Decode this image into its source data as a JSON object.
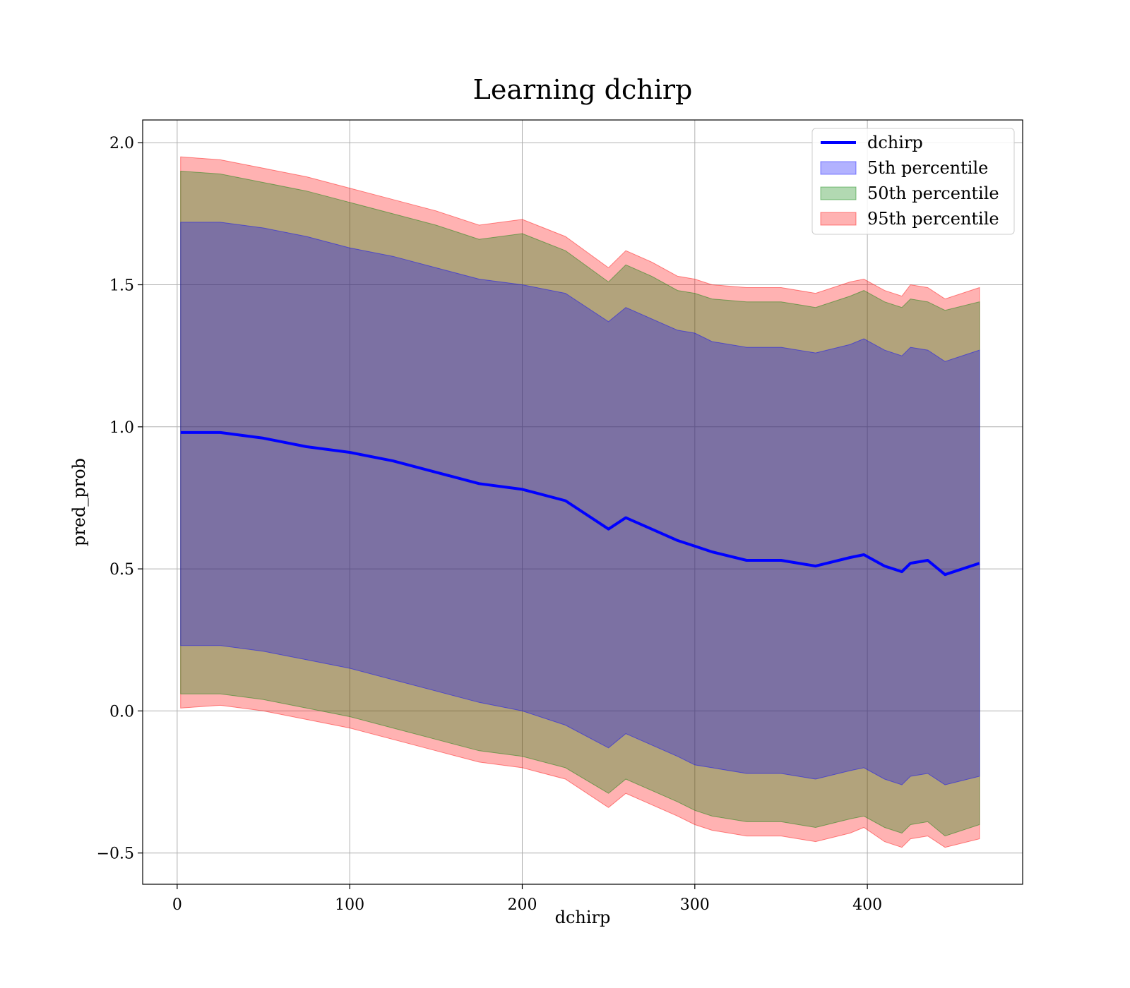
{
  "chart_data": {
    "type": "area",
    "title": "Learning dchirp",
    "xlabel": "dchirp",
    "ylabel": "pred_prob",
    "xlim": [
      -20,
      490
    ],
    "ylim": [
      -0.61,
      2.08
    ],
    "xticks": [
      0,
      100,
      200,
      300,
      400
    ],
    "yticks": [
      -0.5,
      0.0,
      0.5,
      1.0,
      1.5,
      2.0
    ],
    "xtick_labels": [
      "0",
      "100",
      "200",
      "300",
      "400"
    ],
    "ytick_labels": [
      "−0.5",
      "0.0",
      "0.5",
      "1.0",
      "1.5",
      "2.0"
    ],
    "grid": true,
    "legend_position": "top-right",
    "x": [
      2,
      25,
      50,
      75,
      100,
      125,
      150,
      175,
      200,
      225,
      250,
      260,
      275,
      290,
      300,
      310,
      330,
      350,
      370,
      390,
      398,
      410,
      420,
      425,
      435,
      445,
      465
    ],
    "line": {
      "name": "dchirp",
      "color": "#0000ff",
      "values": [
        0.98,
        0.98,
        0.96,
        0.93,
        0.91,
        0.88,
        0.84,
        0.8,
        0.78,
        0.74,
        0.64,
        0.68,
        0.64,
        0.6,
        0.58,
        0.56,
        0.53,
        0.53,
        0.51,
        0.54,
        0.55,
        0.51,
        0.49,
        0.52,
        0.53,
        0.48,
        0.52
      ]
    },
    "bands": [
      {
        "name": "95th percentile",
        "color": "#ff0000",
        "opacity": 0.3,
        "upper": [
          1.95,
          1.94,
          1.91,
          1.88,
          1.84,
          1.8,
          1.76,
          1.71,
          1.73,
          1.67,
          1.56,
          1.62,
          1.58,
          1.53,
          1.52,
          1.5,
          1.49,
          1.49,
          1.47,
          1.51,
          1.52,
          1.48,
          1.46,
          1.5,
          1.49,
          1.45,
          1.49
        ],
        "lower": [
          0.01,
          0.02,
          0.0,
          -0.03,
          -0.06,
          -0.1,
          -0.14,
          -0.18,
          -0.2,
          -0.24,
          -0.34,
          -0.29,
          -0.33,
          -0.37,
          -0.4,
          -0.42,
          -0.44,
          -0.44,
          -0.46,
          -0.43,
          -0.41,
          -0.46,
          -0.48,
          -0.45,
          -0.44,
          -0.48,
          -0.45
        ]
      },
      {
        "name": "50th percentile",
        "color": "#008000",
        "opacity": 0.3,
        "upper": [
          1.9,
          1.89,
          1.86,
          1.83,
          1.79,
          1.75,
          1.71,
          1.66,
          1.68,
          1.62,
          1.51,
          1.57,
          1.53,
          1.48,
          1.47,
          1.45,
          1.44,
          1.44,
          1.42,
          1.46,
          1.48,
          1.44,
          1.42,
          1.45,
          1.44,
          1.41,
          1.44
        ],
        "lower": [
          0.06,
          0.06,
          0.04,
          0.01,
          -0.02,
          -0.06,
          -0.1,
          -0.14,
          -0.16,
          -0.2,
          -0.29,
          -0.24,
          -0.28,
          -0.32,
          -0.35,
          -0.37,
          -0.39,
          -0.39,
          -0.41,
          -0.38,
          -0.37,
          -0.41,
          -0.43,
          -0.4,
          -0.39,
          -0.44,
          -0.4
        ]
      },
      {
        "name": "5th percentile",
        "color": "#0000ff",
        "opacity": 0.3,
        "upper": [
          1.72,
          1.72,
          1.7,
          1.67,
          1.63,
          1.6,
          1.56,
          1.52,
          1.5,
          1.47,
          1.37,
          1.42,
          1.38,
          1.34,
          1.33,
          1.3,
          1.28,
          1.28,
          1.26,
          1.29,
          1.31,
          1.27,
          1.25,
          1.28,
          1.27,
          1.23,
          1.27
        ],
        "lower": [
          0.23,
          0.23,
          0.21,
          0.18,
          0.15,
          0.11,
          0.07,
          0.03,
          0.0,
          -0.05,
          -0.13,
          -0.08,
          -0.12,
          -0.16,
          -0.19,
          -0.2,
          -0.22,
          -0.22,
          -0.24,
          -0.21,
          -0.2,
          -0.24,
          -0.26,
          -0.23,
          -0.22,
          -0.26,
          -0.23
        ]
      }
    ],
    "legend": [
      {
        "label": "dchirp",
        "kind": "line",
        "color": "#0000ff"
      },
      {
        "label": "5th percentile",
        "kind": "patch",
        "color": "#0000ff"
      },
      {
        "label": "50th percentile",
        "kind": "patch",
        "color": "#008000"
      },
      {
        "label": "95th percentile",
        "kind": "patch",
        "color": "#ff0000"
      }
    ]
  }
}
